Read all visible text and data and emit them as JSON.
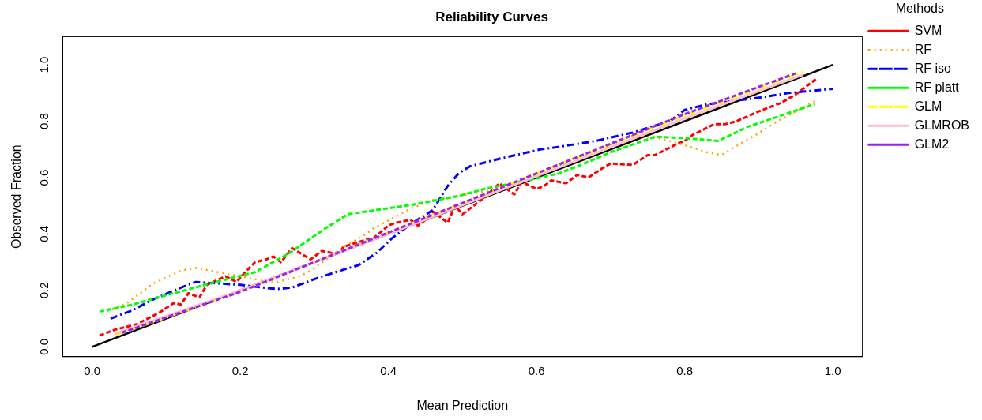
{
  "chart_data": {
    "type": "line",
    "title": "Reliability Curves",
    "xlabel": "Mean Prediction",
    "ylabel": "Observed Fraction",
    "legend_title": "Methods",
    "legend": "right",
    "grid": false,
    "marker": "none",
    "xlim": [
      -0.04,
      1.04
    ],
    "ylim": [
      -0.035,
      1.1
    ],
    "xticks": [
      {
        "value": 0,
        "label": "0.0"
      },
      0.2,
      0.4,
      0.6,
      0.8,
      {
        "value": 1,
        "label": "1.0"
      }
    ],
    "yticks": [
      {
        "value": 0,
        "label": "0.0"
      },
      0.2,
      0.4,
      0.6,
      0.8,
      {
        "value": 1,
        "label": "1.0"
      }
    ],
    "series": [
      {
        "name": "SVM",
        "color": "#ff0000",
        "line_style": "dashed",
        "x": [
          0.01,
          0.03,
          0.06,
          0.09,
          0.11,
          0.12,
          0.13,
          0.145,
          0.155,
          0.18,
          0.195,
          0.205,
          0.22,
          0.235,
          0.245,
          0.255,
          0.27,
          0.295,
          0.31,
          0.33,
          0.34,
          0.37,
          0.38,
          0.4,
          0.41,
          0.43,
          0.44,
          0.45,
          0.46,
          0.48,
          0.49,
          0.5,
          0.53,
          0.55,
          0.57,
          0.58,
          0.6,
          0.61,
          0.62,
          0.64,
          0.655,
          0.67,
          0.69,
          0.7,
          0.73,
          0.75,
          0.76,
          0.79,
          0.8,
          0.81,
          0.84,
          0.855,
          0.87,
          0.9,
          0.93,
          0.95,
          0.98
        ],
        "values": [
          0.04,
          0.06,
          0.08,
          0.12,
          0.155,
          0.15,
          0.19,
          0.175,
          0.22,
          0.25,
          0.23,
          0.26,
          0.3,
          0.31,
          0.32,
          0.3,
          0.35,
          0.31,
          0.34,
          0.33,
          0.355,
          0.38,
          0.385,
          0.43,
          0.44,
          0.45,
          0.43,
          0.45,
          0.48,
          0.44,
          0.5,
          0.47,
          0.53,
          0.58,
          0.54,
          0.585,
          0.56,
          0.57,
          0.59,
          0.58,
          0.61,
          0.6,
          0.635,
          0.65,
          0.645,
          0.68,
          0.68,
          0.72,
          0.73,
          0.75,
          0.79,
          0.79,
          0.8,
          0.835,
          0.865,
          0.895,
          0.955
        ]
      },
      {
        "name": "RF",
        "color": "#ffa500",
        "line_style": "dotted",
        "x": [
          0.02,
          0.047,
          0.083,
          0.12,
          0.14,
          0.18,
          0.22,
          0.25,
          0.28,
          0.295,
          0.34,
          0.37,
          0.38,
          0.43,
          0.46,
          0.55,
          0.65,
          0.73,
          0.765,
          0.8,
          0.83,
          0.85,
          0.865,
          0.895,
          0.925,
          0.975
        ],
        "values": [
          0.125,
          0.155,
          0.225,
          0.27,
          0.28,
          0.26,
          0.24,
          0.23,
          0.25,
          0.27,
          0.355,
          0.4,
          0.42,
          0.49,
          0.52,
          0.56,
          0.66,
          0.75,
          0.74,
          0.715,
          0.69,
          0.68,
          0.705,
          0.75,
          0.8,
          0.87
        ]
      },
      {
        "name": "RF iso",
        "color": "#0000ff",
        "line_style": "dashdot",
        "x": [
          0.025,
          0.055,
          0.08,
          0.12,
          0.14,
          0.17,
          0.2,
          0.23,
          0.25,
          0.27,
          0.3,
          0.335,
          0.36,
          0.385,
          0.405,
          0.43,
          0.46,
          0.48,
          0.495,
          0.51,
          0.555,
          0.605,
          0.62,
          0.68,
          0.73,
          0.78,
          0.8,
          0.83,
          0.86,
          0.905,
          0.94,
          1.0
        ],
        "values": [
          0.1,
          0.13,
          0.165,
          0.21,
          0.23,
          0.225,
          0.22,
          0.21,
          0.205,
          0.21,
          0.24,
          0.27,
          0.29,
          0.335,
          0.385,
          0.435,
          0.485,
          0.57,
          0.615,
          0.64,
          0.67,
          0.7,
          0.705,
          0.73,
          0.76,
          0.8,
          0.84,
          0.86,
          0.87,
          0.885,
          0.9,
          0.915
        ]
      },
      {
        "name": "RF platt",
        "color": "#00ff00",
        "line_style": "dashed",
        "x": [
          0.01,
          0.055,
          0.11,
          0.16,
          0.22,
          0.265,
          0.315,
          0.345,
          0.435,
          0.495,
          0.53,
          0.605,
          0.63,
          0.66,
          0.7,
          0.76,
          0.8,
          0.845,
          0.885,
          0.975
        ],
        "values": [
          0.125,
          0.15,
          0.19,
          0.225,
          0.265,
          0.33,
          0.42,
          0.47,
          0.505,
          0.535,
          0.56,
          0.6,
          0.615,
          0.645,
          0.69,
          0.745,
          0.74,
          0.73,
          0.78,
          0.86
        ]
      },
      {
        "name": "GLM",
        "color": "#ffff00",
        "line_style": "dashdot",
        "x": [
          0.03,
          0.2,
          0.4,
          0.6,
          0.8,
          0.96
        ],
        "values": [
          0.04,
          0.195,
          0.405,
          0.615,
          0.82,
          0.975
        ]
      },
      {
        "name": "GLMROB",
        "color": "#ffc0cb",
        "line_style": "solid",
        "x": [
          0.03,
          0.2,
          0.4,
          0.6,
          0.8,
          0.96
        ],
        "values": [
          0.045,
          0.2,
          0.4,
          0.605,
          0.81,
          0.965
        ]
      },
      {
        "name": "GLM2",
        "color": "#a020f0",
        "line_style": "dashed",
        "x": [
          0.04,
          0.2,
          0.4,
          0.6,
          0.8,
          0.95
        ],
        "values": [
          0.05,
          0.195,
          0.405,
          0.615,
          0.825,
          0.97
        ]
      },
      {
        "color": "#000000",
        "line_style": "solid",
        "x": [
          0.0,
          1.0
        ],
        "values": [
          0.0,
          1.0
        ]
      }
    ]
  }
}
